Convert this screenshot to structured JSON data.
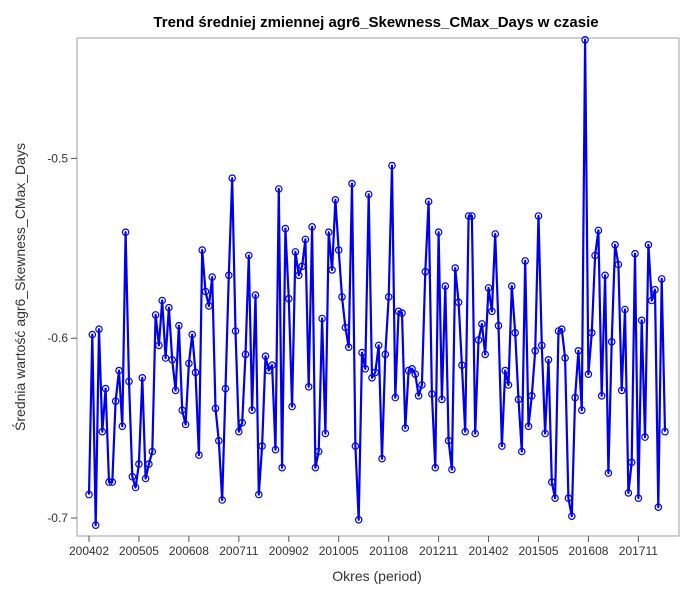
{
  "chart_data": {
    "type": "line",
    "title": "Trend średniej zmiennej agr6_Skewness_CMax_Days w czasie",
    "xlabel": "Okres (period)",
    "ylabel": "Średnia wartość agr6_Skewness_CMax_Days",
    "x_tick_labels": [
      "200402",
      "200505",
      "200608",
      "200711",
      "200902",
      "201005",
      "201108",
      "201211",
      "201402",
      "201505",
      "201608",
      "201711"
    ],
    "y_ticks": [
      -0.5,
      -0.6,
      -0.7
    ],
    "ylim": [
      -0.71,
      -0.433
    ],
    "grid": false,
    "legend": "none",
    "colors": {
      "series": "#0000ee",
      "frame": "#a0a0a0"
    },
    "series": [
      {
        "values": [
          -0.687,
          -0.598,
          -0.704,
          -0.595,
          -0.652,
          -0.628,
          -0.68,
          -0.68,
          -0.635,
          -0.618,
          -0.649,
          -0.541,
          -0.624,
          -0.677,
          -0.683,
          -0.67,
          -0.622,
          -0.678,
          -0.67,
          -0.663,
          -0.587,
          -0.604,
          -0.579,
          -0.611,
          -0.583,
          -0.612,
          -0.629,
          -0.593,
          -0.64,
          -0.648,
          -0.614,
          -0.598,
          -0.619,
          -0.665,
          -0.551,
          -0.574,
          -0.582,
          -0.566,
          -0.639,
          -0.657,
          -0.69,
          -0.628,
          -0.565,
          -0.511,
          -0.596,
          -0.652,
          -0.647,
          -0.609,
          -0.554,
          -0.64,
          -0.576,
          -0.687,
          -0.66,
          -0.61,
          -0.618,
          -0.615,
          -0.662,
          -0.517,
          -0.672,
          -0.539,
          -0.578,
          -0.638,
          -0.552,
          -0.565,
          -0.56,
          -0.545,
          -0.627,
          -0.538,
          -0.672,
          -0.663,
          -0.589,
          -0.653,
          -0.541,
          -0.562,
          -0.523,
          -0.551,
          -0.577,
          -0.594,
          -0.605,
          -0.514,
          -0.66,
          -0.701,
          -0.608,
          -0.617,
          -0.52,
          -0.622,
          -0.619,
          -0.604,
          -0.667,
          -0.609,
          -0.577,
          -0.504,
          -0.633,
          -0.585,
          -0.586,
          -0.65,
          -0.618,
          -0.617,
          -0.62,
          -0.632,
          -0.626,
          -0.563,
          -0.524,
          -0.631,
          -0.672,
          -0.541,
          -0.634,
          -0.571,
          -0.657,
          -0.673,
          -0.561,
          -0.58,
          -0.615,
          -0.652,
          -0.532,
          -0.532,
          -0.653,
          -0.601,
          -0.592,
          -0.609,
          -0.572,
          -0.585,
          -0.542,
          -0.593,
          -0.66,
          -0.618,
          -0.626,
          -0.571,
          -0.597,
          -0.634,
          -0.663,
          -0.557,
          -0.649,
          -0.632,
          -0.607,
          -0.532,
          -0.604,
          -0.653,
          -0.612,
          -0.68,
          -0.689,
          -0.596,
          -0.595,
          -0.611,
          -0.689,
          -0.699,
          -0.633,
          -0.607,
          -0.64,
          -0.434,
          -0.62,
          -0.597,
          -0.554,
          -0.54,
          -0.632,
          -0.565,
          -0.675,
          -0.602,
          -0.548,
          -0.559,
          -0.629,
          -0.584,
          -0.686,
          -0.669,
          -0.553,
          -0.689,
          -0.59,
          -0.655,
          -0.548,
          -0.579,
          -0.573,
          -0.694,
          -0.567,
          -0.652
        ]
      }
    ]
  }
}
